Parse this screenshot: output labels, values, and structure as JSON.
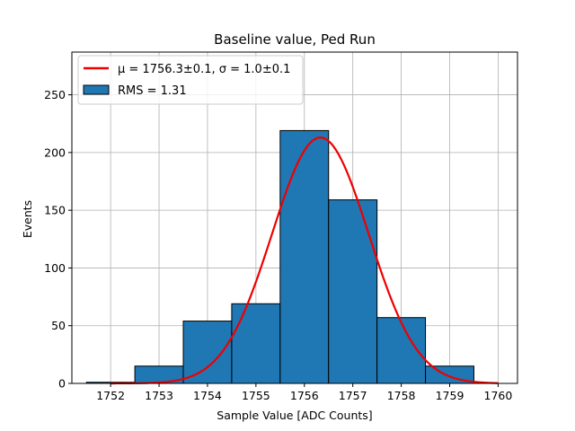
{
  "chart_data": {
    "type": "bar",
    "title": "Baseline value, Ped Run",
    "xlabel": "Sample Value [ADC Counts]",
    "ylabel": "Events",
    "xlim": [
      1751.2,
      1760.4
    ],
    "ylim": [
      0,
      287
    ],
    "x_ticks": [
      1752,
      1753,
      1754,
      1755,
      1756,
      1757,
      1758,
      1759,
      1760
    ],
    "y_ticks": [
      0,
      50,
      100,
      150,
      200,
      250
    ],
    "grid": true,
    "legend_position": "upper left",
    "histogram": {
      "name": "RMS = 1.31",
      "color": "#1f77b4",
      "edge_color": "#000000",
      "bins": [
        {
          "x0": 1751.5,
          "x1": 1752.5,
          "value": 1
        },
        {
          "x0": 1752.5,
          "x1": 1753.5,
          "value": 15
        },
        {
          "x0": 1753.5,
          "x1": 1754.5,
          "value": 54
        },
        {
          "x0": 1754.5,
          "x1": 1755.5,
          "value": 69
        },
        {
          "x0": 1755.5,
          "x1": 1756.5,
          "value": 219
        },
        {
          "x0": 1756.5,
          "x1": 1757.5,
          "value": 159
        },
        {
          "x0": 1757.5,
          "x1": 1758.5,
          "value": 57
        },
        {
          "x0": 1758.5,
          "x1": 1759.5,
          "value": 15
        }
      ]
    },
    "fit": {
      "type": "gaussian",
      "legend_label": "μ = 1756.3±0.1, σ = 1.0±0.1",
      "color": "#ee0000",
      "mu": 1756.33,
      "sigma": 1.0,
      "amplitude": 213,
      "x_range": [
        1752.0,
        1760.0
      ]
    }
  }
}
